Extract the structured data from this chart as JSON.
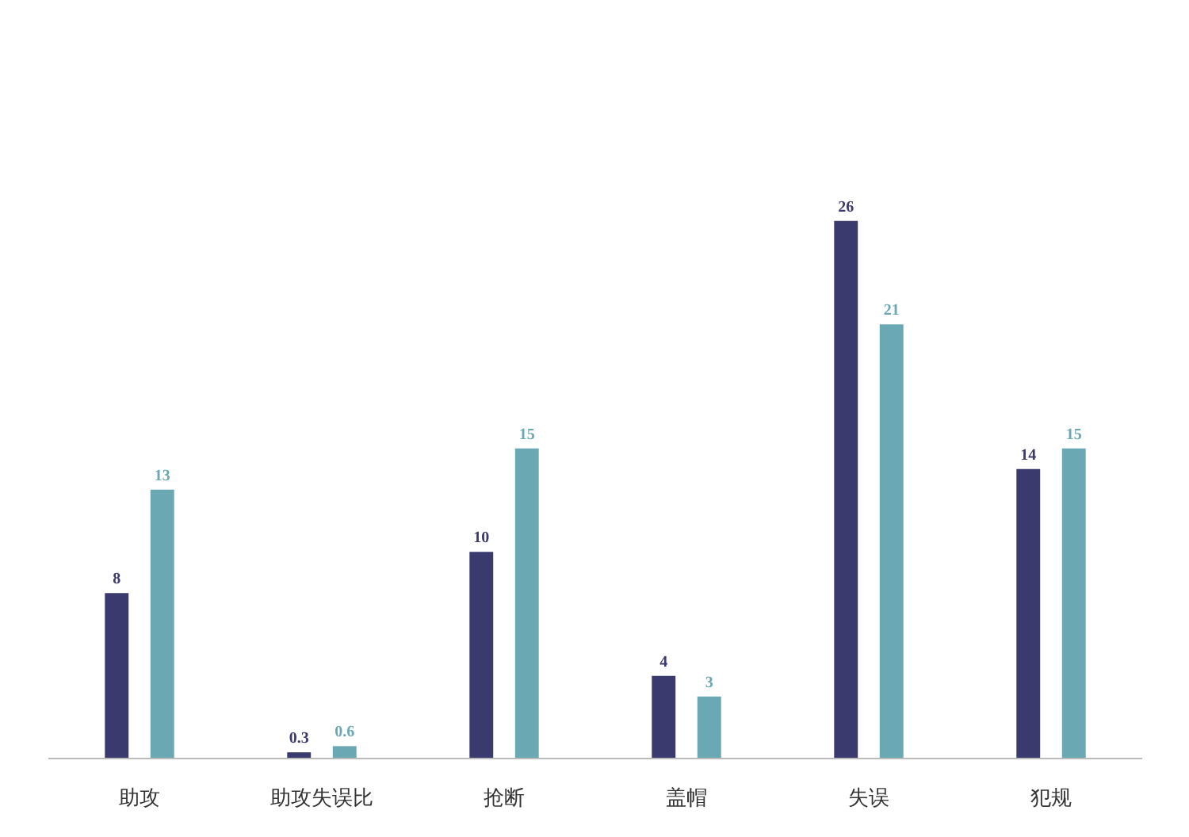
{
  "chart_data": {
    "type": "bar",
    "categories": [
      "助攻",
      "助攻失误比",
      "抢断",
      "盖帽",
      "失误",
      "犯规"
    ],
    "series": [
      {
        "color": "#3b3a6e",
        "values": [
          8,
          0.3,
          10,
          4,
          26,
          14
        ]
      },
      {
        "color": "#6aa8b3",
        "values": [
          13,
          0.6,
          15,
          3,
          21,
          15
        ]
      }
    ],
    "data_labels": true,
    "grid": false
  }
}
